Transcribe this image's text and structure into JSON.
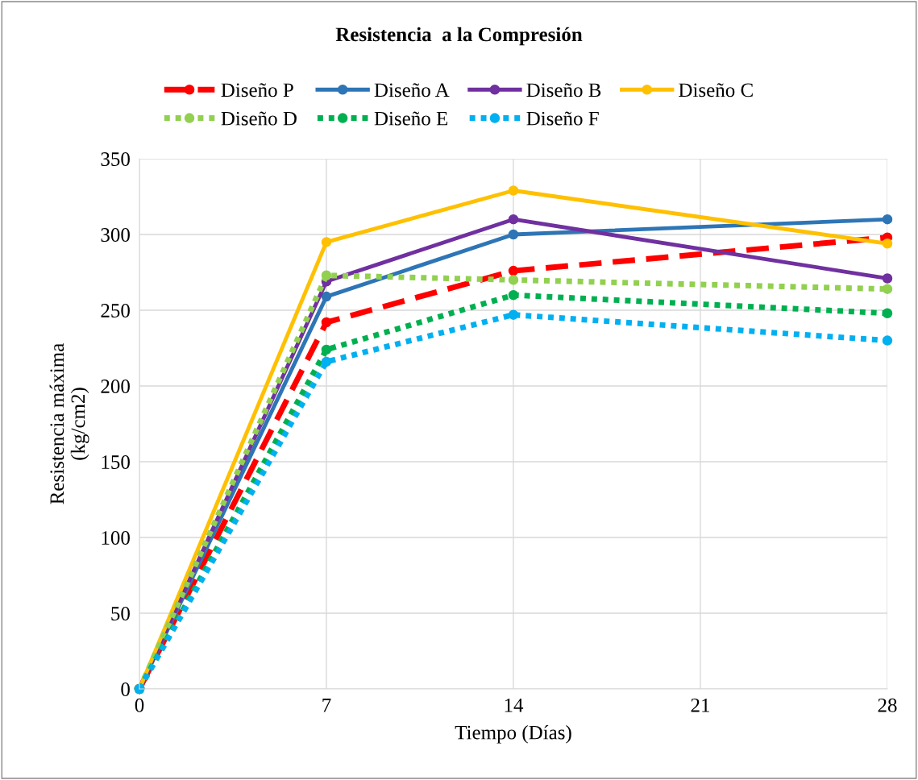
{
  "chart_data": {
    "type": "line",
    "title": "Resistencia  a la Compresión",
    "xlabel": "Tiempo (Días)",
    "ylabel": "Resistencia máxima\n(kg/cm2)",
    "x": [
      0,
      7,
      14,
      28
    ],
    "xlim": [
      0,
      28
    ],
    "xticks": [
      0,
      7,
      14,
      21,
      28
    ],
    "ylim": [
      0,
      350
    ],
    "yticks": [
      0,
      50,
      100,
      150,
      200,
      250,
      300,
      350
    ],
    "grid": true,
    "legend": "top",
    "marker": "circle",
    "series": [
      {
        "name": "Diseño P",
        "color": "#ff0000",
        "line_style": "dashed",
        "values": [
          0,
          242,
          276,
          298
        ]
      },
      {
        "name": "Diseño A",
        "color": "#2e75b6",
        "line_style": "solid",
        "values": [
          0,
          259,
          300,
          310
        ]
      },
      {
        "name": "Diseño B",
        "color": "#7030a0",
        "line_style": "solid",
        "values": [
          0,
          269,
          310,
          271
        ]
      },
      {
        "name": "Diseño C",
        "color": "#ffc000",
        "line_style": "solid",
        "values": [
          0,
          295,
          329,
          294
        ]
      },
      {
        "name": "Diseño D",
        "color": "#92d050",
        "line_style": "dotted",
        "values": [
          0,
          273,
          270,
          264
        ]
      },
      {
        "name": "Diseño E",
        "color": "#00b050",
        "line_style": "dotted",
        "values": [
          0,
          224,
          260,
          248
        ]
      },
      {
        "name": "Diseño F",
        "color": "#00b0f0",
        "line_style": "dotted",
        "values": [
          0,
          216,
          247,
          230
        ]
      }
    ]
  }
}
